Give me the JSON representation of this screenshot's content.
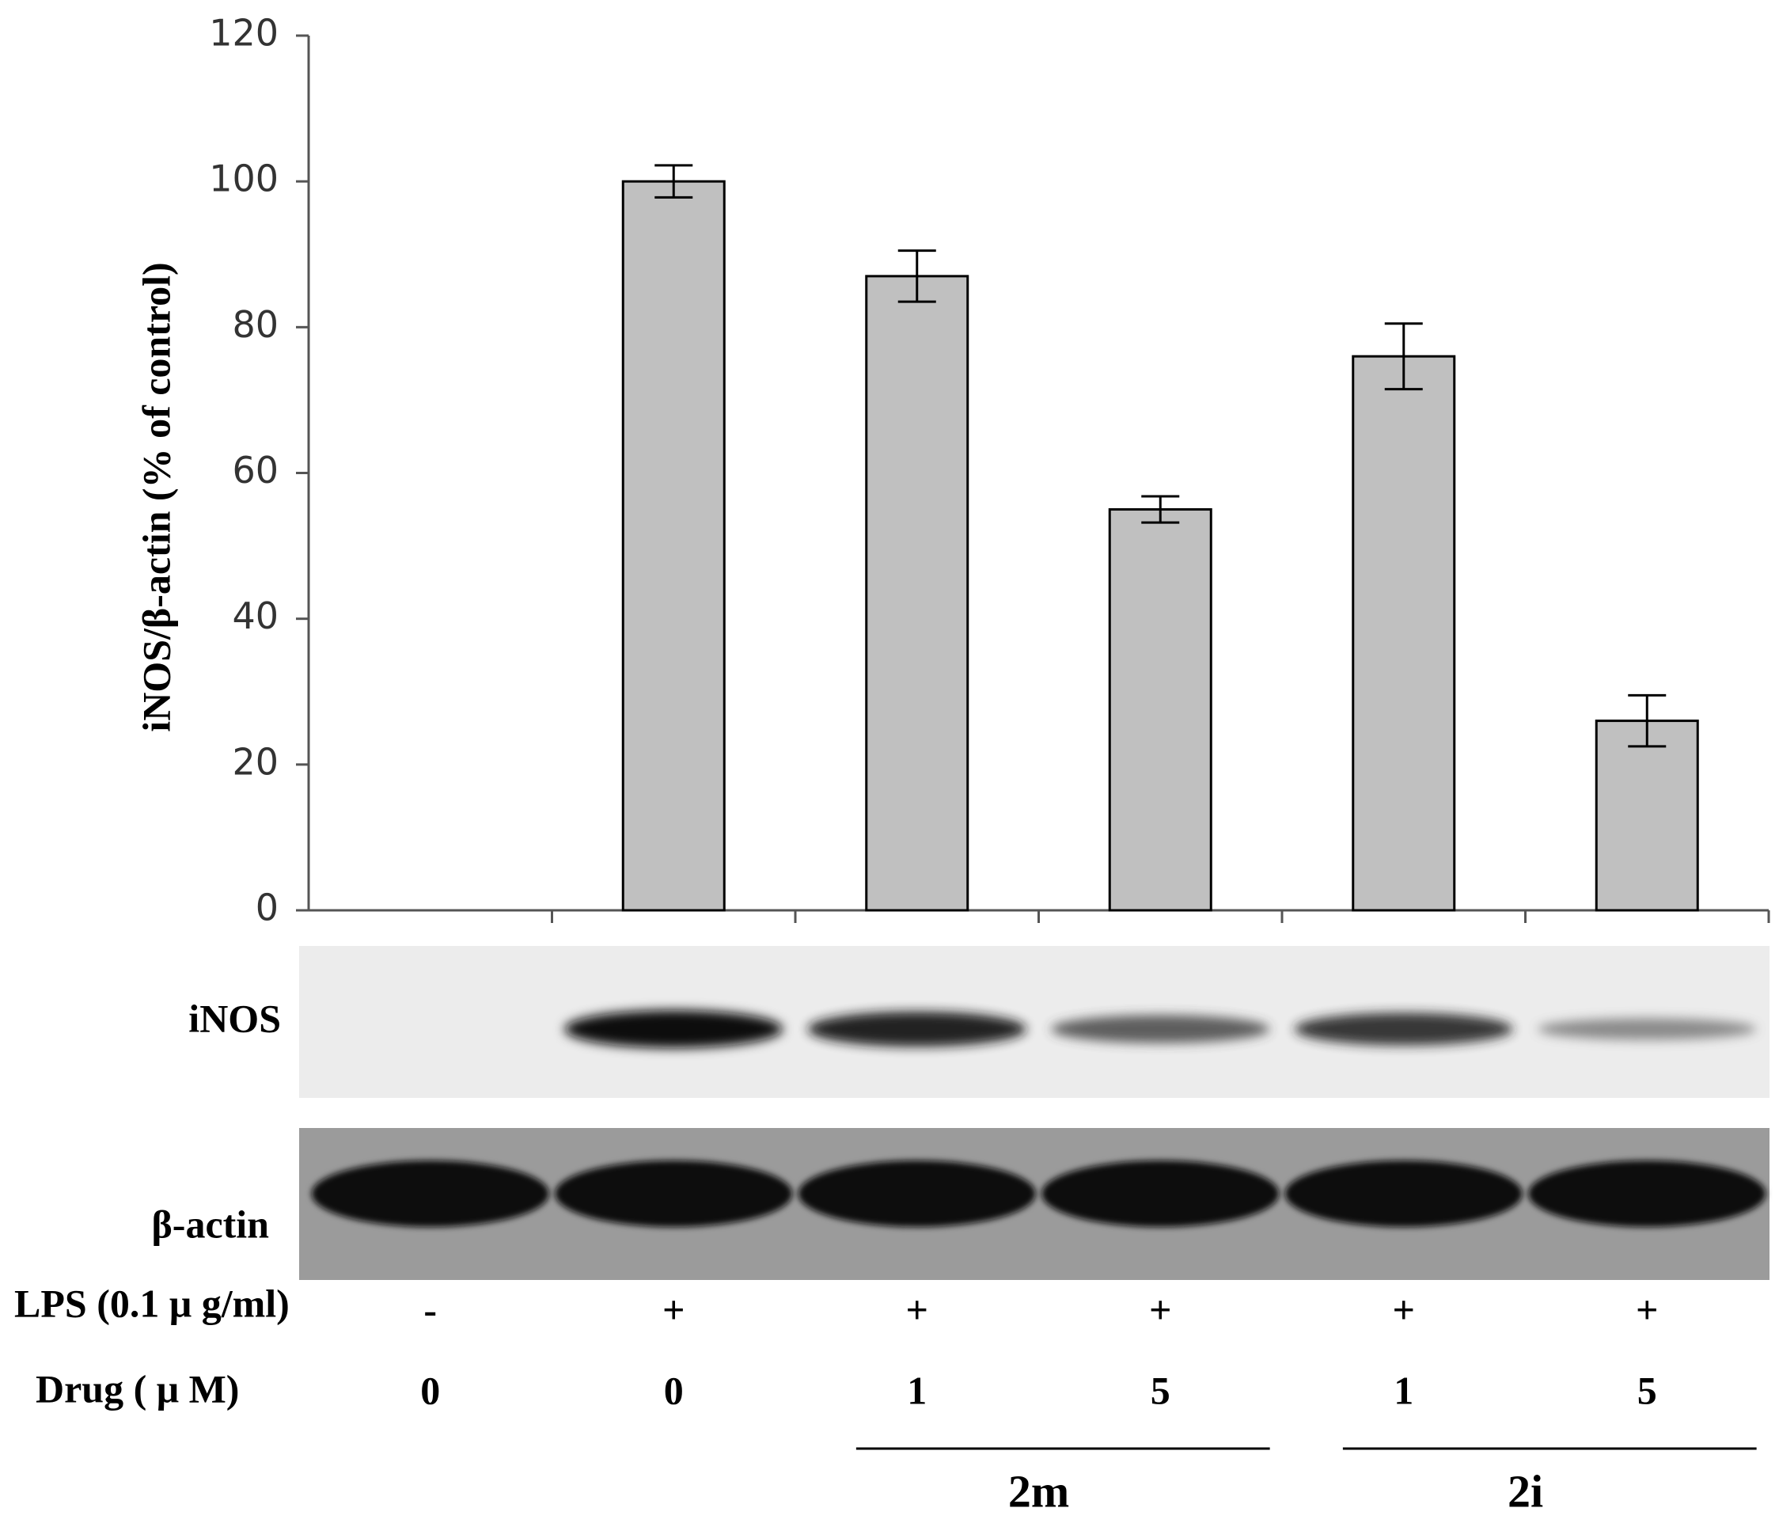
{
  "chart_data": {
    "type": "bar",
    "ylabel": "iNOS/β-actin (% of control)",
    "ylim": [
      0,
      120
    ],
    "yticks": [
      "0",
      "20",
      "40",
      "60",
      "80",
      "100",
      "120"
    ],
    "values": [
      0,
      100,
      87,
      55,
      76,
      26
    ],
    "errors": [
      0,
      2.2,
      3.5,
      1.8,
      4.5,
      3.5
    ],
    "bar_color": "#c0c0c0",
    "grid": false
  },
  "blots": {
    "inos_label": "iNOS",
    "actin_label": "β-actin"
  },
  "conditions": {
    "lps_label": "LPS (0.1 μ g/ml)",
    "lps": [
      "-",
      "+",
      "+",
      "+",
      "+",
      "+"
    ],
    "drug_label": "Drug ( μ M)",
    "drug": [
      "0",
      "0",
      "1",
      "5",
      "1",
      "5"
    ],
    "groups": [
      {
        "label": "2m",
        "span": [
          2,
          3
        ]
      },
      {
        "label": "2i",
        "span": [
          4,
          5
        ]
      }
    ]
  }
}
